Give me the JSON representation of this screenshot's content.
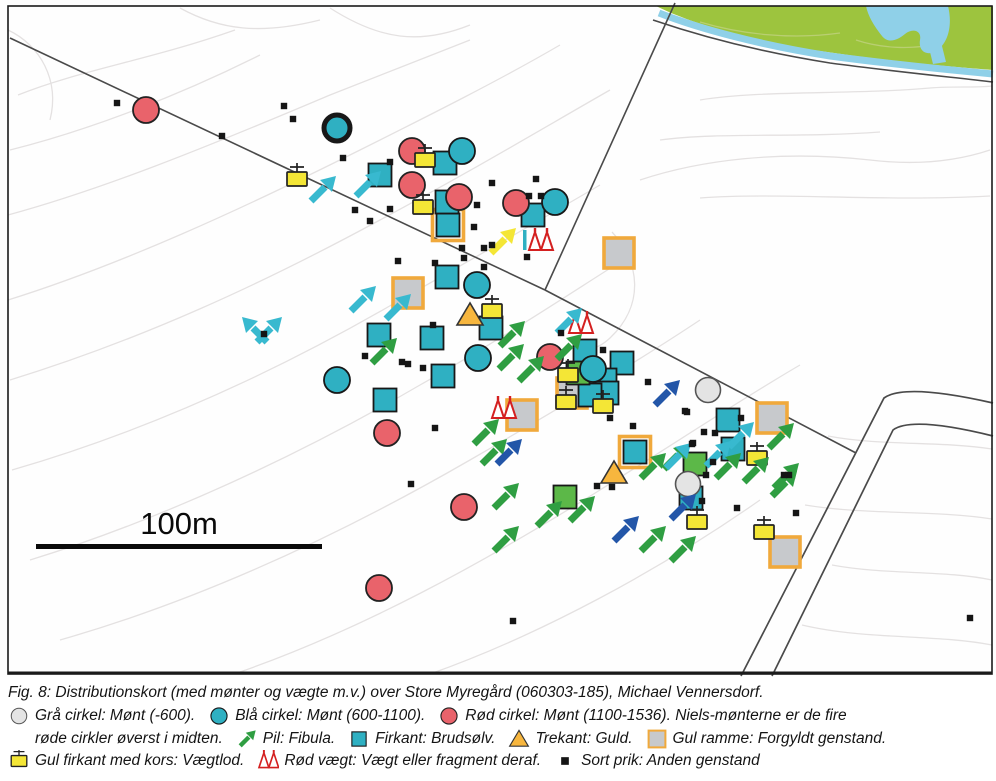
{
  "figure": {
    "caption": "Fig. 8: Distributionskort (med mønter og vægte m.v.) over Store Myregård (060303-185), Michael Vennersdorf.",
    "scale_label": "100m"
  },
  "colors": {
    "cyan": "#2fb0c2",
    "red": "#e9636b",
    "gray_fill": "#c7c9cc",
    "gray_circle": "#e4e4e4",
    "green_square": "#5cb848",
    "green_arrow": "#2f9e42",
    "blue_arrow": "#2356a8",
    "cyan_arrow": "#38b9cf",
    "yellow": "#f4e636",
    "gold": "#f7b63e",
    "orange_frame": "#f0a93c",
    "scales_red": "#d42020",
    "field_green": "#9dc43e",
    "water_blue": "#8fd0e8",
    "contour": "#e3e0e0",
    "boundary_line": "#4a4a4a",
    "dot": "#151515"
  },
  "legend": {
    "lines": [
      [
        {
          "icon": "circle-gray",
          "text": "Grå cirkel: Mønt (-600)."
        },
        {
          "icon": "circle-blue",
          "text": "Blå cirkel: Mønt (600-1100)."
        },
        {
          "icon": "circle-red",
          "text": "Rød cirkel: Mønt (1100-1536). Niels-mønterne er de fire"
        }
      ],
      [
        {
          "icon": null,
          "text": "røde cirkler øverst i midten."
        },
        {
          "icon": "arrow-green",
          "text": "Pil: Fibula."
        },
        {
          "icon": "square-cyan",
          "text": "Firkant: Brudsølv."
        },
        {
          "icon": "triangle-gold",
          "text": "Trekant: Guld."
        },
        {
          "icon": "square-gray-framed",
          "text": "Gul ramme: Forgyldt genstand."
        }
      ],
      [
        {
          "icon": "weight-yellow",
          "text": "Gul firkant med kors: Vægtlod."
        },
        {
          "icon": "scales-red",
          "text": "Rød vægt: Vægt eller fragment deraf."
        },
        {
          "icon": "dot",
          "text": "Sort prik: Anden genstand"
        }
      ]
    ]
  },
  "map": {
    "symbols": [
      [
        "square-gray-framed",
        619,
        253
      ],
      [
        "square-gray-framed",
        408,
        293
      ],
      [
        "square-gray-framed",
        572,
        393
      ],
      [
        "square-gray-framed",
        522,
        415
      ],
      [
        "square-gray-framed",
        772,
        418
      ],
      [
        "square-gray-framed",
        785,
        552
      ],
      [
        "square-cyan-framed",
        448,
        225
      ],
      [
        "square-cyan-framed",
        635,
        452
      ],
      [
        "square-cyan",
        380,
        175
      ],
      [
        "square-cyan",
        445,
        163
      ],
      [
        "square-cyan",
        447,
        202
      ],
      [
        "square-cyan",
        533,
        215
      ],
      [
        "square-cyan",
        379,
        335
      ],
      [
        "square-cyan",
        432,
        338
      ],
      [
        "square-cyan",
        443,
        376
      ],
      [
        "square-cyan",
        385,
        400
      ],
      [
        "square-cyan",
        447,
        277
      ],
      [
        "square-cyan",
        491,
        328
      ],
      [
        "square-cyan",
        585,
        351
      ],
      [
        "square-cyan",
        622,
        363
      ],
      [
        "square-cyan",
        605,
        380
      ],
      [
        "square-cyan",
        607,
        393
      ],
      [
        "square-cyan",
        590,
        395
      ],
      [
        "square-cyan",
        728,
        420
      ],
      [
        "square-cyan",
        733,
        449
      ],
      [
        "square-cyan",
        691,
        498
      ],
      [
        "square-green",
        565,
        497
      ],
      [
        "square-green",
        695,
        464
      ],
      [
        "square-green",
        578,
        373
      ],
      [
        "circle-gray",
        708,
        390
      ],
      [
        "circle-gray",
        688,
        484
      ],
      [
        "circle-blue",
        337,
        128,
        "thick"
      ],
      [
        "circle-blue",
        462,
        151
      ],
      [
        "circle-blue",
        555,
        202
      ],
      [
        "circle-blue",
        477,
        285
      ],
      [
        "circle-blue",
        478,
        358
      ],
      [
        "circle-blue",
        337,
        380
      ],
      [
        "circle-blue",
        593,
        369
      ],
      [
        "circle-red",
        146,
        110
      ],
      [
        "circle-red",
        412,
        151
      ],
      [
        "circle-red",
        412,
        185
      ],
      [
        "circle-red",
        459,
        197
      ],
      [
        "circle-red",
        516,
        203
      ],
      [
        "circle-red",
        550,
        357
      ],
      [
        "circle-red",
        387,
        433
      ],
      [
        "circle-red",
        464,
        507
      ],
      [
        "circle-red",
        379,
        588
      ],
      [
        "triangle-gold",
        470,
        315
      ],
      [
        "triangle-gold",
        614,
        473
      ],
      [
        "weight-yellow",
        297,
        179
      ],
      [
        "weight-yellow",
        425,
        160
      ],
      [
        "weight-yellow",
        423,
        207
      ],
      [
        "weight-yellow",
        492,
        311
      ],
      [
        "weight-yellow",
        568,
        375
      ],
      [
        "weight-yellow",
        566,
        402
      ],
      [
        "weight-yellow",
        603,
        406
      ],
      [
        "weight-yellow",
        697,
        522
      ],
      [
        "weight-yellow",
        757,
        458
      ],
      [
        "weight-yellow",
        764,
        532
      ],
      [
        "scales-red",
        540,
        242,
        "bar"
      ],
      [
        "scales-red",
        580,
        325
      ],
      [
        "scales-red",
        503,
        410
      ],
      [
        "arrow-green",
        383,
        352
      ],
      [
        "arrow-green",
        511,
        335
      ],
      [
        "arrow-green",
        510,
        358
      ],
      [
        "arrow-green",
        530,
        370
      ],
      [
        "arrow-green",
        568,
        348
      ],
      [
        "arrow-green",
        652,
        467
      ],
      [
        "arrow-green",
        675,
        458
      ],
      [
        "arrow-green",
        727,
        467
      ],
      [
        "arrow-green",
        755,
        471
      ],
      [
        "arrow-green",
        780,
        437
      ],
      [
        "arrow-green",
        785,
        477
      ],
      [
        "arrow-green",
        505,
        497
      ],
      [
        "arrow-green",
        548,
        515
      ],
      [
        "arrow-green",
        581,
        510
      ],
      [
        "arrow-green",
        505,
        540
      ],
      [
        "arrow-green",
        652,
        540
      ],
      [
        "arrow-green",
        682,
        550
      ],
      [
        "arrow-green",
        783,
        485
      ],
      [
        "arrow-green",
        485,
        433
      ],
      [
        "arrow-green",
        493,
        453
      ],
      [
        "arrow-blue",
        666,
        394
      ],
      [
        "arrow-blue",
        682,
        508
      ],
      [
        "arrow-blue",
        625,
        530
      ],
      [
        "arrow-blue",
        508,
        453
      ],
      [
        "arrow-cyan",
        322,
        190
      ],
      [
        "arrow-cyan",
        367,
        185
      ],
      [
        "arrow-cyan",
        256,
        331,
        "nw"
      ],
      [
        "arrow-cyan",
        268,
        331
      ],
      [
        "arrow-cyan",
        362,
        300
      ],
      [
        "arrow-cyan",
        397,
        308
      ],
      [
        "arrow-cyan",
        568,
        322
      ],
      [
        "arrow-cyan",
        677,
        457
      ],
      [
        "arrow-cyan",
        717,
        455
      ],
      [
        "arrow-cyan",
        740,
        436
      ],
      [
        "arrow-yellow",
        502,
        242
      ],
      [
        "dot",
        117,
        103
      ],
      [
        "dot",
        222,
        136
      ],
      [
        "dot",
        284,
        106
      ],
      [
        "dot",
        293,
        119
      ],
      [
        "dot",
        390,
        162
      ],
      [
        "dot",
        343,
        158
      ],
      [
        "dot",
        355,
        210
      ],
      [
        "dot",
        370,
        221
      ],
      [
        "dot",
        390,
        209
      ],
      [
        "dot",
        398,
        261
      ],
      [
        "dot",
        435,
        263
      ],
      [
        "dot",
        462,
        248
      ],
      [
        "dot",
        464,
        258
      ],
      [
        "dot",
        477,
        205
      ],
      [
        "dot",
        474,
        227
      ],
      [
        "dot",
        484,
        248
      ],
      [
        "dot",
        492,
        245
      ],
      [
        "dot",
        492,
        183
      ],
      [
        "dot",
        527,
        257
      ],
      [
        "dot",
        484,
        267
      ],
      [
        "dot",
        536,
        179
      ],
      [
        "dot",
        529,
        196
      ],
      [
        "dot",
        541,
        196
      ],
      [
        "dot",
        433,
        325
      ],
      [
        "dot",
        402,
        362
      ],
      [
        "dot",
        408,
        364
      ],
      [
        "dot",
        423,
        368
      ],
      [
        "dot",
        365,
        356
      ],
      [
        "dot",
        435,
        428
      ],
      [
        "dot",
        264,
        334
      ],
      [
        "dot",
        561,
        333
      ],
      [
        "dot",
        603,
        350
      ],
      [
        "dot",
        648,
        382
      ],
      [
        "dot",
        687,
        412
      ],
      [
        "dot",
        610,
        418
      ],
      [
        "dot",
        633,
        426
      ],
      [
        "dot",
        685,
        411
      ],
      [
        "dot",
        704,
        432
      ],
      [
        "dot",
        715,
        433
      ],
      [
        "dot",
        693,
        443
      ],
      [
        "dot",
        411,
        484
      ],
      [
        "dot",
        597,
        486
      ],
      [
        "dot",
        612,
        487
      ],
      [
        "dot",
        513,
        621
      ],
      [
        "dot",
        692,
        444
      ],
      [
        "dot",
        713,
        462
      ],
      [
        "dot",
        706,
        475
      ],
      [
        "dot",
        702,
        501
      ],
      [
        "dot",
        737,
        508
      ],
      [
        "dot",
        789,
        475
      ],
      [
        "dot",
        796,
        513
      ],
      [
        "dot",
        784,
        475
      ],
      [
        "dot",
        970,
        618
      ],
      [
        "dot",
        741,
        418
      ]
    ]
  }
}
